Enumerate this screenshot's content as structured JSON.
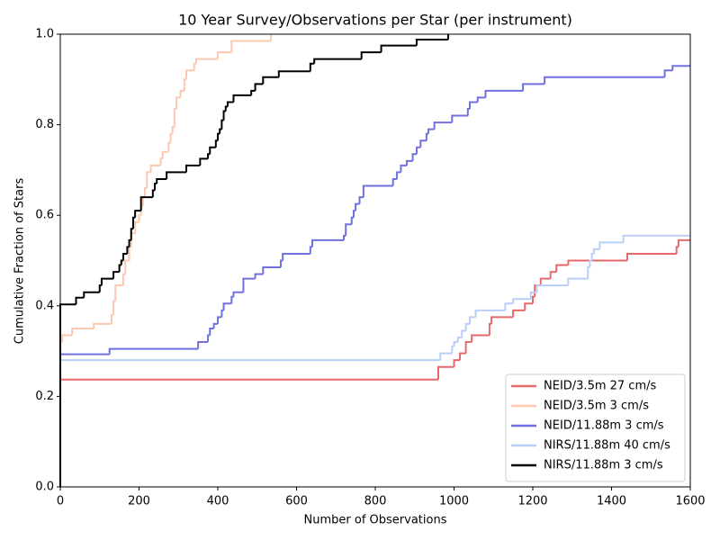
{
  "chart_data": {
    "type": "step",
    "title": "10 Year Survey/Observations per Star (per instrument)",
    "x_label": "Number of Observations",
    "y_label": "Cumulative Fraction of Stars",
    "xlim": [
      0,
      1600
    ],
    "ylim": [
      0,
      1
    ],
    "xticks": [
      0,
      200,
      400,
      600,
      800,
      1000,
      1200,
      1400,
      1600
    ],
    "yticks": [
      {
        "value": 0,
        "label": "0.0"
      },
      {
        "value": 0.2,
        "label": "0.2"
      },
      {
        "value": 0.4,
        "label": "0.4"
      },
      {
        "value": 0.6,
        "label": "0.6"
      },
      {
        "value": 0.8,
        "label": "0.8"
      },
      {
        "value": 1,
        "label": "1.0"
      }
    ],
    "legend": "lower right",
    "series": [
      {
        "name": "NEID/3.5m 27 cm/s",
        "color": "#e8696b",
        "x": [
          0,
          0,
          960,
          1000,
          1015,
          1030,
          1045,
          1090,
          1095,
          1150,
          1180,
          1200,
          1205,
          1220,
          1245,
          1260,
          1290,
          1440,
          1565,
          1570,
          1600
        ],
        "values": [
          0,
          0.237,
          0.265,
          0.28,
          0.295,
          0.32,
          0.335,
          0.36,
          0.375,
          0.39,
          0.405,
          0.42,
          0.445,
          0.46,
          0.475,
          0.49,
          0.5,
          0.515,
          0.53,
          0.545,
          0.545
        ]
      },
      {
        "name": "NEID/3.5m 3 cm/s",
        "color": "#fdc8b0",
        "x": [
          0,
          0,
          5,
          30,
          85,
          130,
          135,
          140,
          160,
          165,
          175,
          180,
          190,
          200,
          205,
          210,
          215,
          220,
          230,
          255,
          260,
          275,
          280,
          285,
          290,
          295,
          305,
          315,
          320,
          340,
          345,
          400,
          435,
          535
        ],
        "values": [
          0,
          0.32,
          0.335,
          0.35,
          0.36,
          0.38,
          0.41,
          0.445,
          0.47,
          0.5,
          0.53,
          0.56,
          0.585,
          0.6,
          0.62,
          0.64,
          0.66,
          0.695,
          0.71,
          0.725,
          0.74,
          0.76,
          0.78,
          0.795,
          0.835,
          0.86,
          0.875,
          0.9,
          0.92,
          0.935,
          0.945,
          0.96,
          0.985,
          1
        ]
      },
      {
        "name": "NEID/11.88m 3 cm/s",
        "color": "#7070e0",
        "x": [
          0,
          0,
          125,
          350,
          375,
          380,
          390,
          400,
          410,
          415,
          435,
          440,
          465,
          495,
          515,
          560,
          565,
          635,
          640,
          720,
          725,
          740,
          745,
          750,
          760,
          770,
          845,
          855,
          865,
          880,
          895,
          905,
          915,
          930,
          935,
          950,
          995,
          1035,
          1040,
          1060,
          1080,
          1175,
          1230,
          1535,
          1555,
          1600
        ],
        "values": [
          0,
          0.293,
          0.305,
          0.32,
          0.335,
          0.35,
          0.36,
          0.375,
          0.39,
          0.405,
          0.42,
          0.43,
          0.46,
          0.47,
          0.485,
          0.5,
          0.515,
          0.53,
          0.545,
          0.555,
          0.58,
          0.595,
          0.61,
          0.625,
          0.64,
          0.665,
          0.68,
          0.695,
          0.71,
          0.72,
          0.735,
          0.75,
          0.765,
          0.78,
          0.79,
          0.805,
          0.82,
          0.835,
          0.85,
          0.86,
          0.875,
          0.89,
          0.905,
          0.92,
          0.93,
          0.93
        ]
      },
      {
        "name": "NIRS/11.88m 40 cm/s",
        "color": "#b9cff7",
        "x": [
          0,
          0,
          965,
          995,
          1000,
          1010,
          1020,
          1030,
          1040,
          1055,
          1130,
          1150,
          1195,
          1210,
          1290,
          1340,
          1345,
          1350,
          1355,
          1370,
          1430,
          1600
        ],
        "values": [
          0,
          0.28,
          0.295,
          0.31,
          0.32,
          0.33,
          0.345,
          0.36,
          0.375,
          0.39,
          0.405,
          0.415,
          0.43,
          0.445,
          0.46,
          0.485,
          0.5,
          0.515,
          0.525,
          0.54,
          0.555,
          0.555
        ]
      },
      {
        "name": "NIRS/11.88m 3 cm/s",
        "color": "#000000",
        "x": [
          0,
          0,
          40,
          60,
          100,
          105,
          135,
          150,
          155,
          160,
          170,
          175,
          180,
          185,
          190,
          205,
          235,
          240,
          245,
          270,
          320,
          355,
          375,
          380,
          395,
          400,
          405,
          410,
          415,
          420,
          425,
          440,
          485,
          495,
          515,
          555,
          635,
          645,
          765,
          815,
          905,
          985
        ],
        "values": [
          0,
          0.403,
          0.418,
          0.43,
          0.445,
          0.46,
          0.475,
          0.49,
          0.5,
          0.515,
          0.53,
          0.545,
          0.57,
          0.595,
          0.61,
          0.64,
          0.655,
          0.67,
          0.68,
          0.695,
          0.71,
          0.725,
          0.735,
          0.75,
          0.765,
          0.78,
          0.79,
          0.81,
          0.83,
          0.84,
          0.85,
          0.865,
          0.875,
          0.89,
          0.905,
          0.918,
          0.935,
          0.945,
          0.96,
          0.975,
          0.988,
          1
        ]
      }
    ]
  }
}
